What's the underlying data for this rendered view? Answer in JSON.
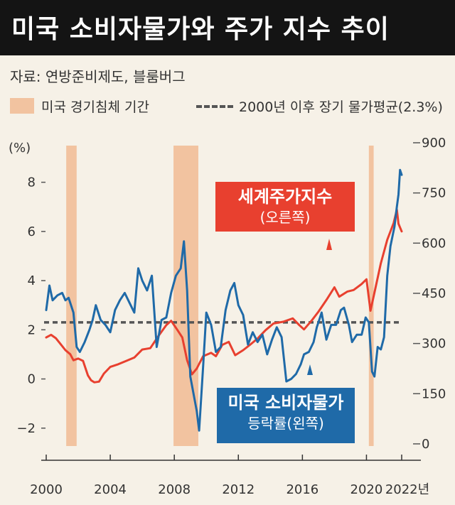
{
  "title": "미국 소비자물가와 주가 지수 추이",
  "source": "자료: 연방준비제도, 블룸버그",
  "legend": {
    "recession": "미국 경기침체 기간",
    "average": "2000년 이후 장기 물가평균(2.3%)"
  },
  "colors": {
    "title_bg": "#141414",
    "background": "#f6f1e7",
    "recession": "#f2c3a0",
    "cpi": "#1f6aa8",
    "stock": "#e8402f",
    "average": "#555555"
  },
  "labels": {
    "stock_main": "세계주가지수",
    "stock_sub": "(오른쪽)",
    "cpi_main": "미국 소비자물가",
    "cpi_sub": "등락률(왼쪽)"
  },
  "chart_data": {
    "type": "line",
    "x_range": [
      2000,
      2022.2
    ],
    "x_ticks": [
      "2000",
      "2004",
      "2008",
      "2012",
      "2016",
      "2020",
      "2022년"
    ],
    "y_left": {
      "unit": "(%)",
      "range": [
        -2.7,
        9.0
      ],
      "ticks": [
        "8",
        "6",
        "4",
        "2",
        "0",
        "−2"
      ]
    },
    "y_right": {
      "range": [
        -15,
        900
      ],
      "ticks": [
        "900",
        "750",
        "600",
        "450",
        "300",
        "150",
        "0"
      ]
    },
    "average_cpi": 2.3,
    "recessions": [
      [
        2001.25,
        2001.9
      ],
      [
        2007.95,
        2009.5
      ],
      [
        2020.15,
        2020.45
      ]
    ],
    "series": [
      {
        "name": "세계주가지수",
        "axis": "right",
        "points": [
          [
            2000.0,
            318
          ],
          [
            2000.3,
            326
          ],
          [
            2000.6,
            316
          ],
          [
            2000.9,
            298
          ],
          [
            2001.2,
            280
          ],
          [
            2001.5,
            268
          ],
          [
            2001.7,
            250
          ],
          [
            2002.0,
            255
          ],
          [
            2002.3,
            248
          ],
          [
            2002.6,
            205
          ],
          [
            2002.8,
            190
          ],
          [
            2003.0,
            184
          ],
          [
            2003.3,
            186
          ],
          [
            2003.6,
            210
          ],
          [
            2004.0,
            230
          ],
          [
            2004.5,
            238
          ],
          [
            2005.0,
            248
          ],
          [
            2005.5,
            258
          ],
          [
            2006.0,
            282
          ],
          [
            2006.5,
            286
          ],
          [
            2007.0,
            322
          ],
          [
            2007.5,
            355
          ],
          [
            2007.8,
            368
          ],
          [
            2008.2,
            340
          ],
          [
            2008.5,
            318
          ],
          [
            2008.8,
            250
          ],
          [
            2009.1,
            208
          ],
          [
            2009.4,
            225
          ],
          [
            2009.8,
            262
          ],
          [
            2010.3,
            272
          ],
          [
            2010.6,
            262
          ],
          [
            2011.0,
            296
          ],
          [
            2011.4,
            305
          ],
          [
            2011.8,
            265
          ],
          [
            2012.3,
            280
          ],
          [
            2012.7,
            295
          ],
          [
            2013.2,
            315
          ],
          [
            2013.7,
            340
          ],
          [
            2014.2,
            360
          ],
          [
            2014.8,
            365
          ],
          [
            2015.4,
            375
          ],
          [
            2015.8,
            355
          ],
          [
            2016.1,
            342
          ],
          [
            2016.6,
            370
          ],
          [
            2017.0,
            395
          ],
          [
            2017.5,
            430
          ],
          [
            2018.0,
            468
          ],
          [
            2018.3,
            440
          ],
          [
            2018.8,
            455
          ],
          [
            2019.2,
            460
          ],
          [
            2019.7,
            478
          ],
          [
            2020.0,
            492
          ],
          [
            2020.25,
            398
          ],
          [
            2020.5,
            452
          ],
          [
            2020.9,
            540
          ],
          [
            2021.3,
            610
          ],
          [
            2021.7,
            660
          ],
          [
            2021.9,
            700
          ],
          [
            2022.0,
            658
          ],
          [
            2022.2,
            635
          ]
        ]
      },
      {
        "name": "미국 소비자물가 등락률",
        "axis": "left",
        "points": [
          [
            2000.0,
            2.8
          ],
          [
            2000.2,
            3.8
          ],
          [
            2000.4,
            3.2
          ],
          [
            2000.7,
            3.4
          ],
          [
            2001.0,
            3.5
          ],
          [
            2001.2,
            3.2
          ],
          [
            2001.4,
            3.3
          ],
          [
            2001.7,
            2.7
          ],
          [
            2001.9,
            1.3
          ],
          [
            2002.1,
            1.1
          ],
          [
            2002.4,
            1.5
          ],
          [
            2002.7,
            2.0
          ],
          [
            2002.9,
            2.4
          ],
          [
            2003.1,
            3.0
          ],
          [
            2003.4,
            2.4
          ],
          [
            2003.7,
            2.2
          ],
          [
            2004.0,
            1.9
          ],
          [
            2004.3,
            2.8
          ],
          [
            2004.6,
            3.2
          ],
          [
            2004.9,
            3.5
          ],
          [
            2005.2,
            3.1
          ],
          [
            2005.5,
            2.7
          ],
          [
            2005.75,
            4.5
          ],
          [
            2006.0,
            4.0
          ],
          [
            2006.3,
            3.6
          ],
          [
            2006.6,
            4.2
          ],
          [
            2006.9,
            1.3
          ],
          [
            2007.2,
            2.4
          ],
          [
            2007.5,
            2.5
          ],
          [
            2007.8,
            3.5
          ],
          [
            2008.1,
            4.2
          ],
          [
            2008.4,
            4.5
          ],
          [
            2008.6,
            5.6
          ],
          [
            2008.8,
            3.6
          ],
          [
            2009.0,
            0.1
          ],
          [
            2009.2,
            -0.6
          ],
          [
            2009.4,
            -1.3
          ],
          [
            2009.55,
            -2.1
          ],
          [
            2009.8,
            0.5
          ],
          [
            2010.0,
            2.7
          ],
          [
            2010.3,
            2.2
          ],
          [
            2010.6,
            1.1
          ],
          [
            2010.9,
            1.3
          ],
          [
            2011.2,
            2.8
          ],
          [
            2011.5,
            3.6
          ],
          [
            2011.75,
            3.9
          ],
          [
            2012.0,
            3.0
          ],
          [
            2012.3,
            2.6
          ],
          [
            2012.6,
            1.4
          ],
          [
            2012.9,
            1.9
          ],
          [
            2013.2,
            1.5
          ],
          [
            2013.5,
            1.8
          ],
          [
            2013.8,
            1.0
          ],
          [
            2014.1,
            1.6
          ],
          [
            2014.4,
            2.1
          ],
          [
            2014.7,
            1.7
          ],
          [
            2015.0,
            -0.1
          ],
          [
            2015.3,
            0.0
          ],
          [
            2015.6,
            0.2
          ],
          [
            2015.9,
            0.6
          ],
          [
            2016.1,
            1.0
          ],
          [
            2016.4,
            1.1
          ],
          [
            2016.7,
            1.5
          ],
          [
            2016.9,
            2.1
          ],
          [
            2017.2,
            2.7
          ],
          [
            2017.5,
            1.6
          ],
          [
            2017.8,
            2.2
          ],
          [
            2018.1,
            2.2
          ],
          [
            2018.4,
            2.8
          ],
          [
            2018.6,
            2.9
          ],
          [
            2018.9,
            2.2
          ],
          [
            2019.1,
            1.5
          ],
          [
            2019.4,
            1.8
          ],
          [
            2019.7,
            1.8
          ],
          [
            2019.95,
            2.5
          ],
          [
            2020.15,
            2.3
          ],
          [
            2020.35,
            0.3
          ],
          [
            2020.5,
            0.1
          ],
          [
            2020.7,
            1.3
          ],
          [
            2020.9,
            1.2
          ],
          [
            2021.1,
            1.7
          ],
          [
            2021.3,
            4.2
          ],
          [
            2021.5,
            5.4
          ],
          [
            2021.75,
            6.2
          ],
          [
            2021.9,
            7.0
          ],
          [
            2022.0,
            7.5
          ],
          [
            2022.1,
            8.5
          ],
          [
            2022.2,
            8.3
          ]
        ]
      }
    ]
  }
}
